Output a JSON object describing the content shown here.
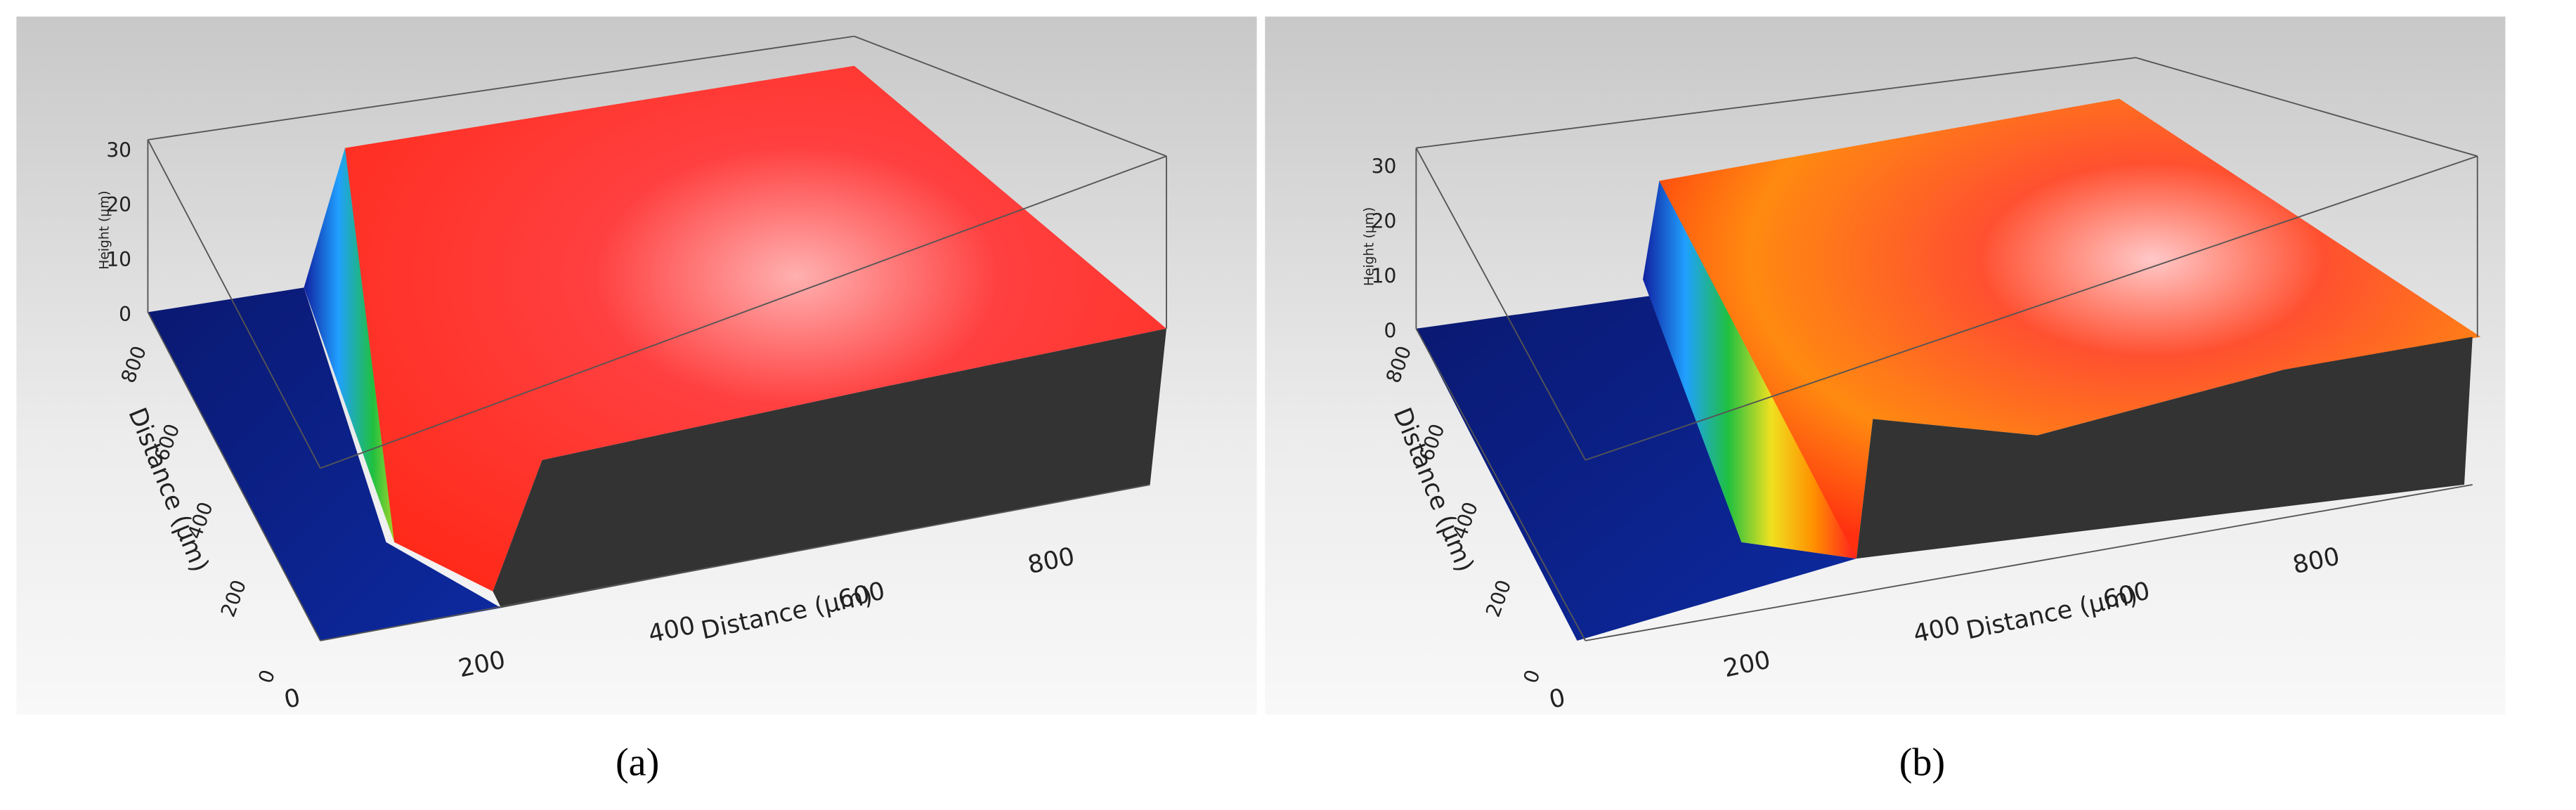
{
  "panels": [
    {
      "label": "(a)",
      "height_axis": {
        "title": "Height (μm)",
        "ticks": [
          0,
          10,
          20,
          30
        ]
      },
      "depth_axis": {
        "title": "Distance (μm)",
        "ticks": [
          0,
          200,
          400,
          600,
          800
        ]
      },
      "width_axis": {
        "title": "Distance (μm)",
        "ticks": [
          0,
          200,
          400,
          600,
          800
        ]
      }
    },
    {
      "label": "(b)",
      "height_axis": {
        "title": "Height (μm)",
        "ticks": [
          0,
          10,
          20,
          30
        ]
      },
      "depth_axis": {
        "title": "Distance (μm)",
        "ticks": [
          0,
          200,
          400,
          600,
          800
        ]
      },
      "width_axis": {
        "title": "Distance (μm)",
        "ticks": [
          0,
          200,
          400,
          600,
          800
        ]
      }
    }
  ]
}
